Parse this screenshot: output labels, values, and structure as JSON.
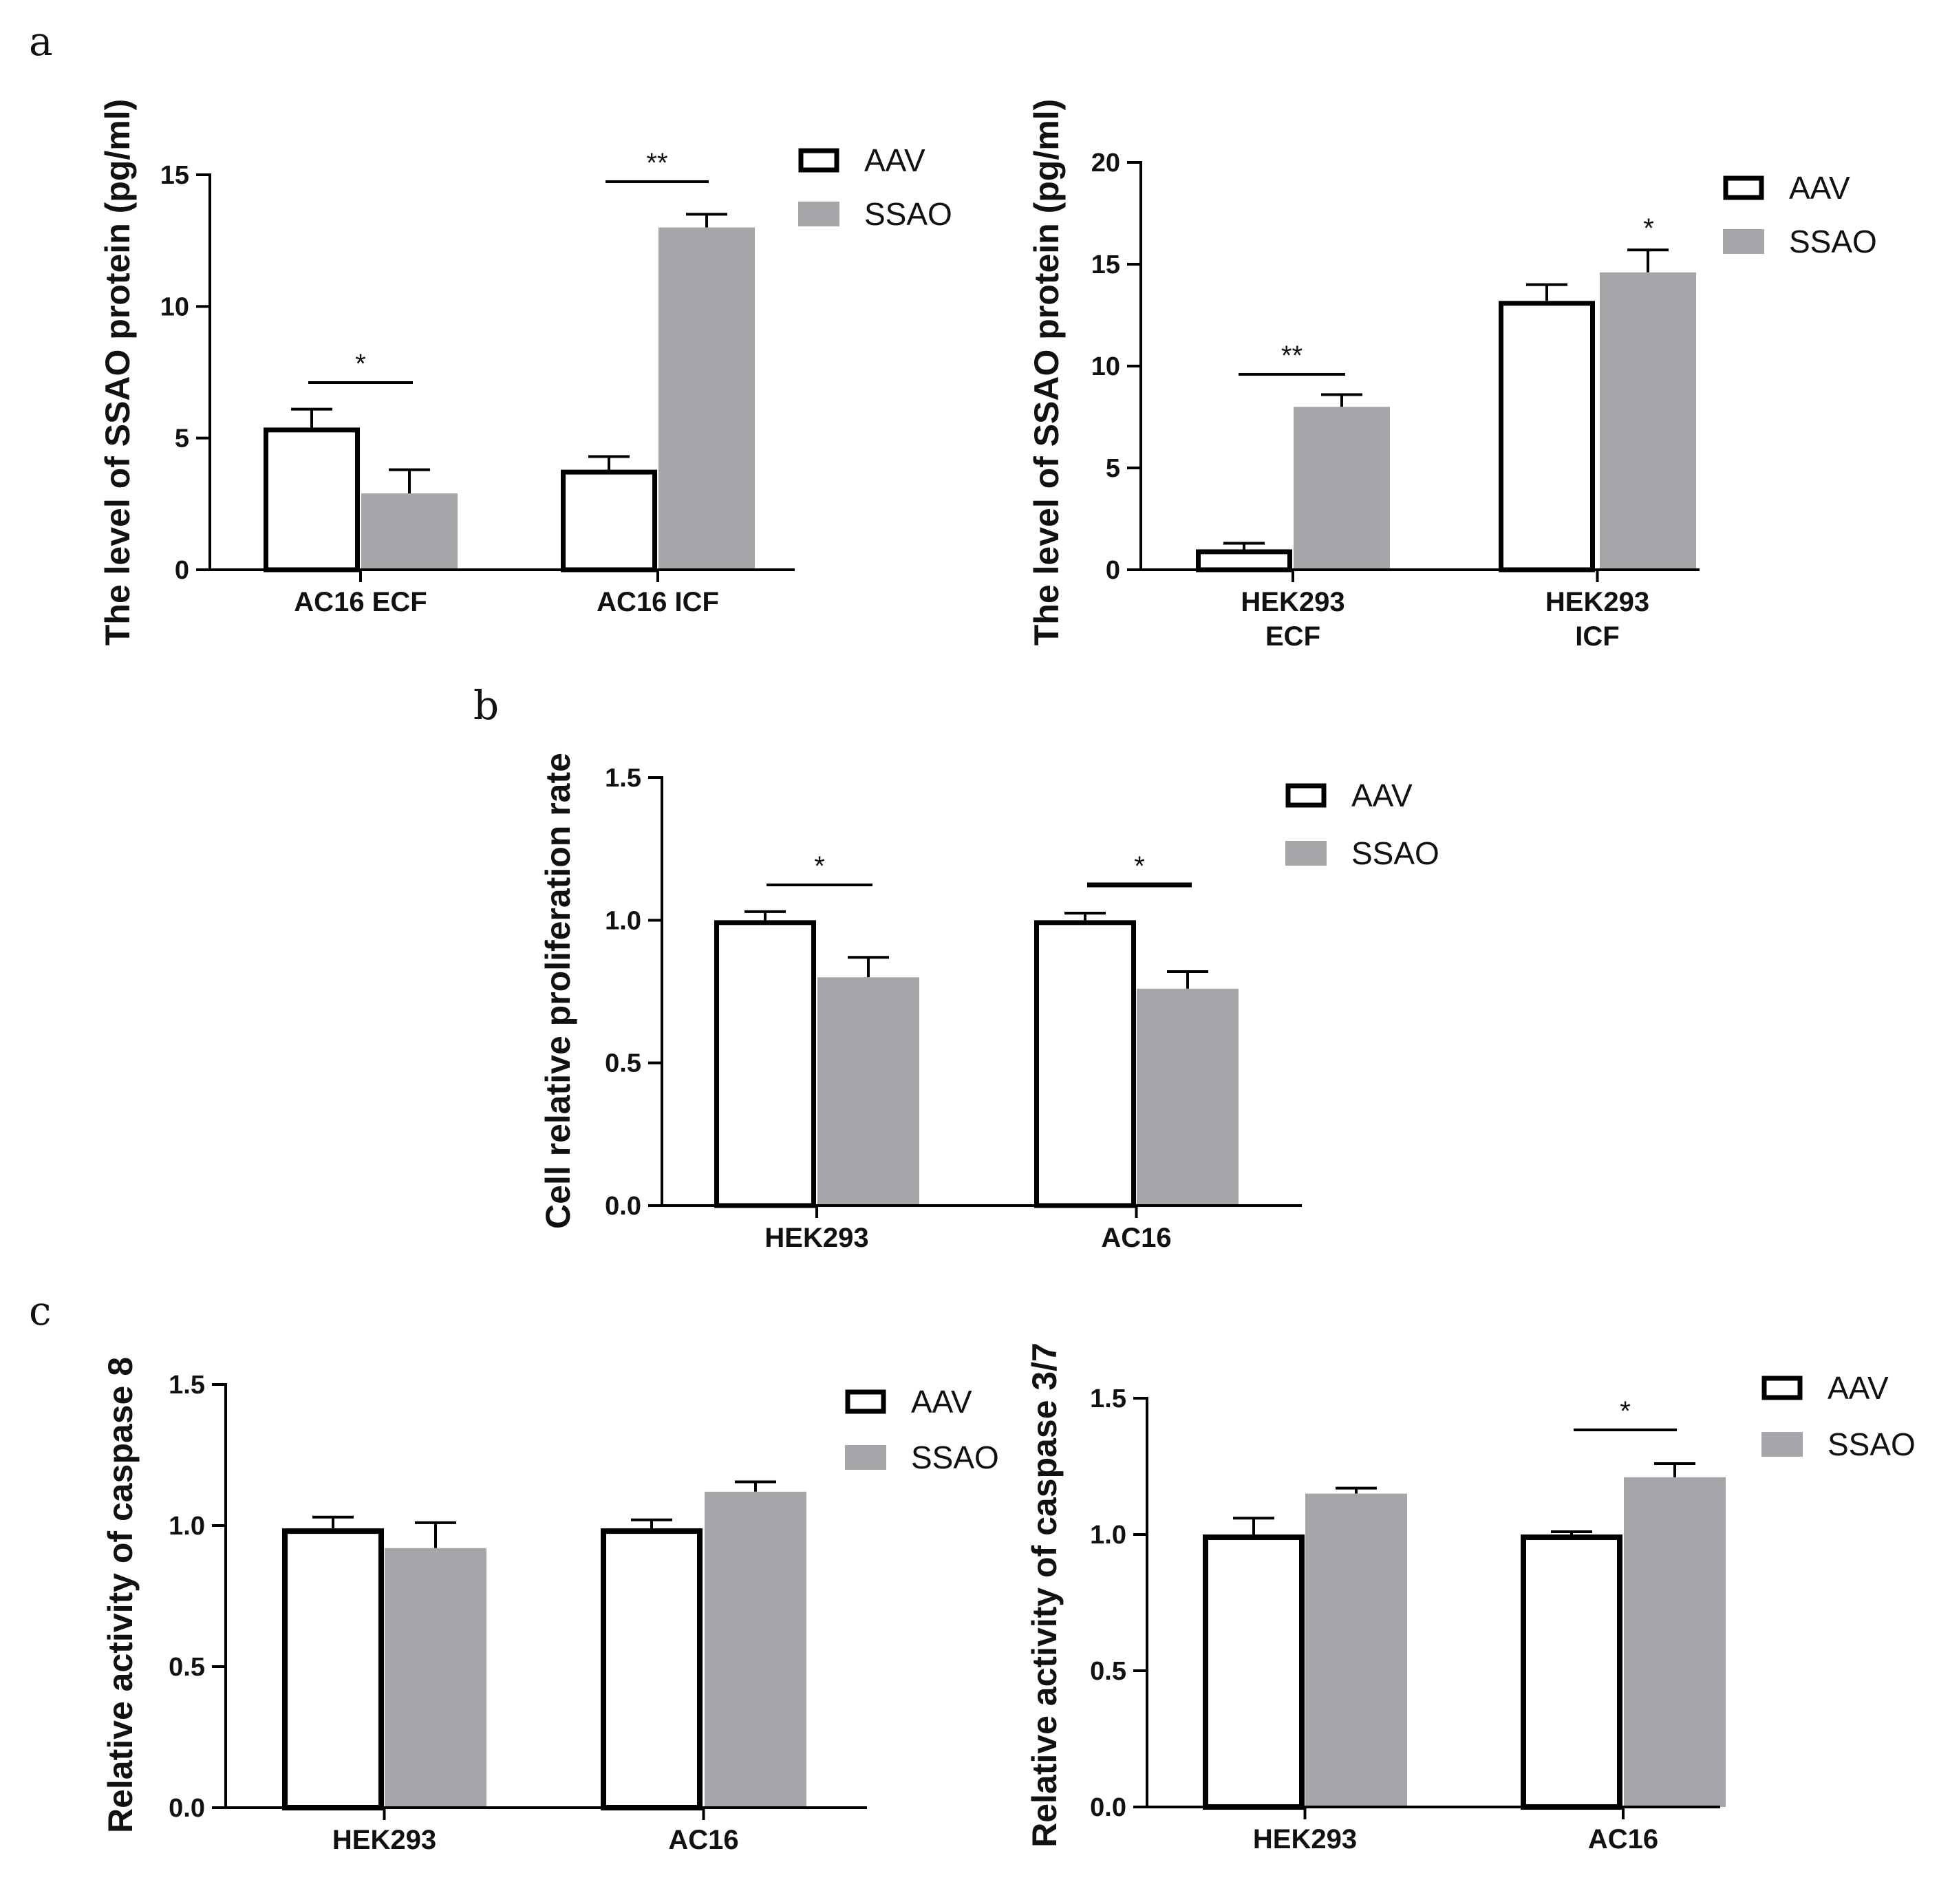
{
  "panel_letters": [
    "a",
    "b",
    "c"
  ],
  "colors": {
    "aav_fill": "#ffffff",
    "aav_stroke": "#000000",
    "ssao_fill": "#a6a6aa",
    "axis": "#000000"
  },
  "chart_data": [
    {
      "type": "bar",
      "panel": "a-left",
      "ylabel": "The level of SSAO protein (pg/ml)",
      "categories": [
        "AC16 ECF",
        "AC16 ICF"
      ],
      "series": [
        {
          "name": "AAV",
          "values": [
            5.4,
            3.8
          ],
          "errors": [
            0.7,
            0.5
          ]
        },
        {
          "name": "SSAO",
          "values": [
            2.9,
            13.0
          ],
          "errors": [
            0.9,
            0.5
          ]
        }
      ],
      "ylim": [
        0,
        15
      ],
      "yticks": [
        0,
        5,
        10,
        15
      ],
      "tick_labels": [
        "0",
        "5",
        "10",
        "15"
      ],
      "significance": [
        "*",
        "**"
      ],
      "legend": [
        "AAV",
        "SSAO"
      ]
    },
    {
      "type": "bar",
      "panel": "a-right",
      "ylabel": "The level of SSAO protein (pg/ml)",
      "categories": [
        [
          "HEK293",
          "ECF"
        ],
        [
          "HEK293",
          "ICF"
        ]
      ],
      "series": [
        {
          "name": "AAV",
          "values": [
            1.0,
            13.2
          ],
          "errors": [
            0.3,
            0.8
          ]
        },
        {
          "name": "SSAO",
          "values": [
            8.0,
            14.6
          ],
          "errors": [
            0.6,
            1.1
          ]
        }
      ],
      "ylim": [
        0,
        20
      ],
      "yticks": [
        0,
        5,
        10,
        15,
        20
      ],
      "tick_labels": [
        "0",
        "5",
        "10",
        "15",
        "20"
      ],
      "significance": [
        "**",
        "*"
      ],
      "legend": [
        "AAV",
        "SSAO"
      ]
    },
    {
      "type": "bar",
      "panel": "b",
      "ylabel": "Cell relative proliferation rate",
      "categories": [
        "HEK293",
        "AC16"
      ],
      "series": [
        {
          "name": "AAV",
          "values": [
            1.0,
            1.0
          ],
          "errors": [
            0.03,
            0.025
          ]
        },
        {
          "name": "SSAO",
          "values": [
            0.8,
            0.76
          ],
          "errors": [
            0.07,
            0.06
          ]
        }
      ],
      "ylim": [
        0,
        1.5
      ],
      "yticks": [
        0,
        0.5,
        1.0,
        1.5
      ],
      "tick_labels": [
        "0.0",
        "0.5",
        "1.0",
        "1.5"
      ],
      "significance": [
        "*",
        "*"
      ],
      "legend": [
        "AAV",
        "SSAO"
      ]
    },
    {
      "type": "bar",
      "panel": "c-left",
      "ylabel": "Relative activity of caspase 8",
      "categories": [
        "HEK293",
        "AC16"
      ],
      "series": [
        {
          "name": "AAV",
          "values": [
            0.99,
            0.99
          ],
          "errors": [
            0.04,
            0.03
          ]
        },
        {
          "name": "SSAO",
          "values": [
            0.92,
            1.12
          ],
          "errors": [
            0.09,
            0.035
          ]
        }
      ],
      "ylim": [
        0,
        1.5
      ],
      "yticks": [
        0,
        0.5,
        1.0,
        1.5
      ],
      "tick_labels": [
        "0.0",
        "0.5",
        "1.0",
        "1.5"
      ],
      "significance": [],
      "legend": [
        "AAV",
        "SSAO"
      ]
    },
    {
      "type": "bar",
      "panel": "c-right",
      "ylabel": "Relative activity of caspase 3/7",
      "categories": [
        "HEK293",
        "AC16"
      ],
      "series": [
        {
          "name": "AAV",
          "values": [
            1.0,
            1.0
          ],
          "errors": [
            0.06,
            0.01
          ]
        },
        {
          "name": "SSAO",
          "values": [
            1.15,
            1.21
          ],
          "errors": [
            0.02,
            0.05
          ]
        }
      ],
      "ylim": [
        0,
        1.5
      ],
      "yticks": [
        0,
        0.5,
        1.0,
        1.5
      ],
      "tick_labels": [
        "0.0",
        "0.5",
        "1.0",
        "1.5"
      ],
      "significance": [
        "",
        "*"
      ],
      "legend": [
        "AAV",
        "SSAO"
      ]
    }
  ]
}
